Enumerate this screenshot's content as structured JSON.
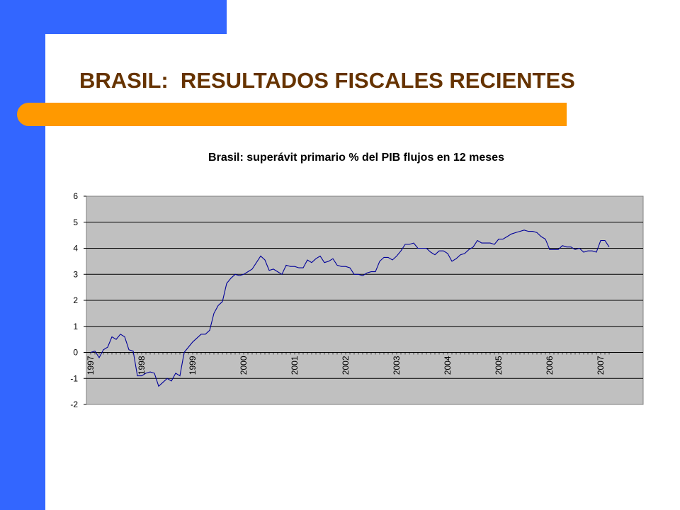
{
  "slide": {
    "title": "BRASIL:  RESULTADOS FISCALES RECIENTES",
    "colors": {
      "blue": "#3366ff",
      "orange": "#ff9900",
      "title": "#663300",
      "plot_bg": "#c0c0c0",
      "line": "#000099"
    }
  },
  "chart_data": {
    "type": "line",
    "title": "Brasil: superávit primario % del PIB flujos en 12 meses",
    "xlabel": "",
    "ylabel": "",
    "ylim": [
      -2,
      6
    ],
    "yticks": [
      -2,
      -1,
      0,
      1,
      2,
      3,
      4,
      5,
      6
    ],
    "x_tick_labels": [
      "1997",
      "1998",
      "1999",
      "2000",
      "2001",
      "2002",
      "2003",
      "2004",
      "2005",
      "2006",
      "2007"
    ],
    "grid": true,
    "legend": "none",
    "series": [
      {
        "x_start": "1997-01",
        "frequency": "monthly",
        "values": [
          0.0,
          0.05,
          -0.2,
          0.1,
          0.2,
          0.6,
          0.5,
          0.7,
          0.6,
          0.1,
          0.05,
          -0.9,
          -0.9,
          -0.8,
          -0.75,
          -0.8,
          -1.3,
          -1.15,
          -1.0,
          -1.1,
          -0.8,
          -0.9,
          0.0,
          0.2,
          0.4,
          0.55,
          0.7,
          0.7,
          0.85,
          1.5,
          1.8,
          1.95,
          2.65,
          2.85,
          3.0,
          2.95,
          3.0,
          3.1,
          3.2,
          3.45,
          3.7,
          3.55,
          3.15,
          3.2,
          3.1,
          3.0,
          3.35,
          3.3,
          3.3,
          3.25,
          3.25,
          3.55,
          3.45,
          3.6,
          3.7,
          3.45,
          3.5,
          3.6,
          3.35,
          3.3,
          3.3,
          3.25,
          3.0,
          3.0,
          2.95,
          3.05,
          3.1,
          3.1,
          3.5,
          3.65,
          3.65,
          3.55,
          3.7,
          3.9,
          4.15,
          4.15,
          4.2,
          4.0,
          4.0,
          4.0,
          3.85,
          3.75,
          3.9,
          3.9,
          3.8,
          3.5,
          3.6,
          3.75,
          3.8,
          3.95,
          4.05,
          4.3,
          4.2,
          4.2,
          4.2,
          4.15,
          4.35,
          4.35,
          4.45,
          4.55,
          4.6,
          4.65,
          4.7,
          4.65,
          4.65,
          4.6,
          4.45,
          4.35,
          3.95,
          3.95,
          3.95,
          4.1,
          4.05,
          4.05,
          3.95,
          4.0,
          3.85,
          3.9,
          3.9,
          3.85,
          4.3,
          4.3,
          4.05
        ]
      }
    ]
  }
}
